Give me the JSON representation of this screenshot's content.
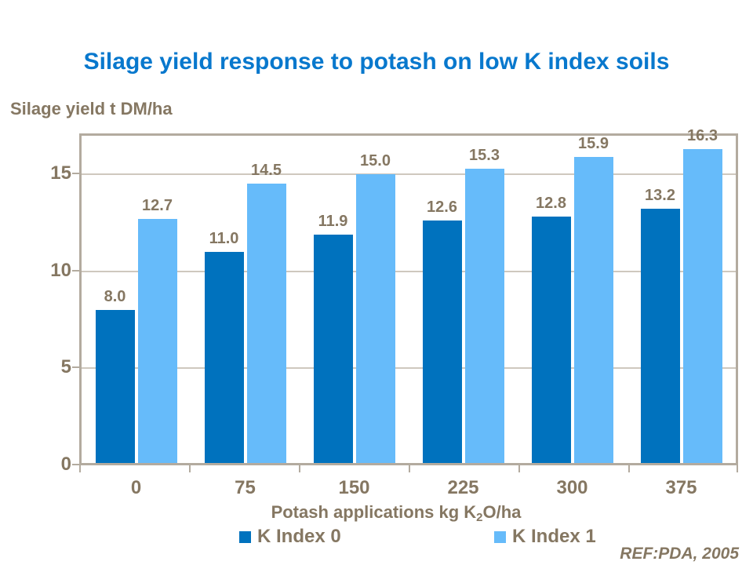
{
  "title": "Silage yield response to potash on low K index soils",
  "y_axis_unit_label": "Silage yield t DM/ha",
  "ref_label": "REF:PDA, 2005",
  "x_axis": {
    "label_prefix": "Potash applications kg K",
    "label_sub": "2",
    "label_suffix": "O/ha"
  },
  "colors": {
    "title_blue": "#0878CD",
    "label_brown": "#857762",
    "series1_dark_blue": "#0072BE",
    "series2_light_blue": "#66BBFA",
    "plot_border": "#B3AB9F",
    "gridline": "#CFC8BE"
  },
  "chart_data": {
    "type": "bar",
    "title": "Silage yield response to potash on low K index soils",
    "xlabel": "Potash applications kg K2O/ha",
    "ylabel": "Silage yield t DM/ha",
    "categories": [
      "0",
      "75",
      "150",
      "225",
      "300",
      "375"
    ],
    "series": [
      {
        "name": "K Index 0",
        "color": "#0072BE",
        "values": [
          8.0,
          11.0,
          11.9,
          12.6,
          12.8,
          13.2
        ]
      },
      {
        "name": "K Index 1",
        "color": "#66BBFA",
        "values": [
          12.7,
          14.5,
          15.0,
          15.3,
          15.9,
          16.3
        ]
      }
    ],
    "value_labels": [
      "8.0",
      "11.0",
      "11.9",
      "12.6",
      "12.8",
      "13.2",
      "12.7",
      "14.5",
      "15.0",
      "15.3",
      "15.9",
      "16.3"
    ],
    "ylim": [
      0,
      17.1
    ],
    "yticks": [
      0,
      5,
      10,
      15
    ],
    "grid": true,
    "legend_position": "bottom",
    "annotation": "REF:PDA, 2005"
  }
}
